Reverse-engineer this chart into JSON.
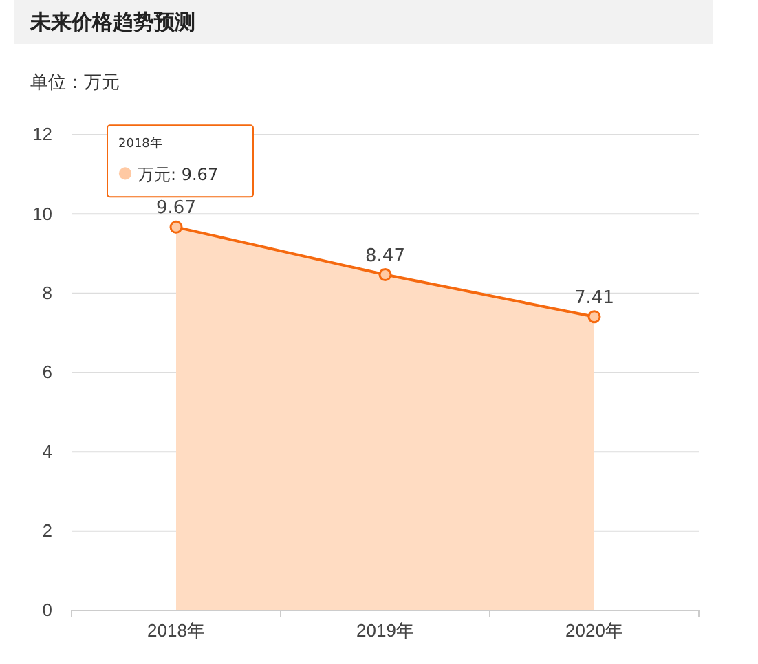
{
  "chart_data": {
    "type": "area",
    "title": "未来价格趋势预测",
    "subtitle": "单位：万元",
    "categories": [
      "2018年",
      "2019年",
      "2020年"
    ],
    "series": [
      {
        "color": "#f5690f",
        "values": [
          9.67,
          8.47,
          7.41
        ]
      }
    ],
    "ylim": [
      0,
      12
    ],
    "yticks": [
      0,
      2,
      4,
      6,
      8,
      10,
      12
    ],
    "grid": "y",
    "marker": "circle",
    "data_labels": true,
    "annotations": [
      {
        "text": "万元: 9.67",
        "x": "2018年",
        "y": 9.67
      }
    ]
  }
}
